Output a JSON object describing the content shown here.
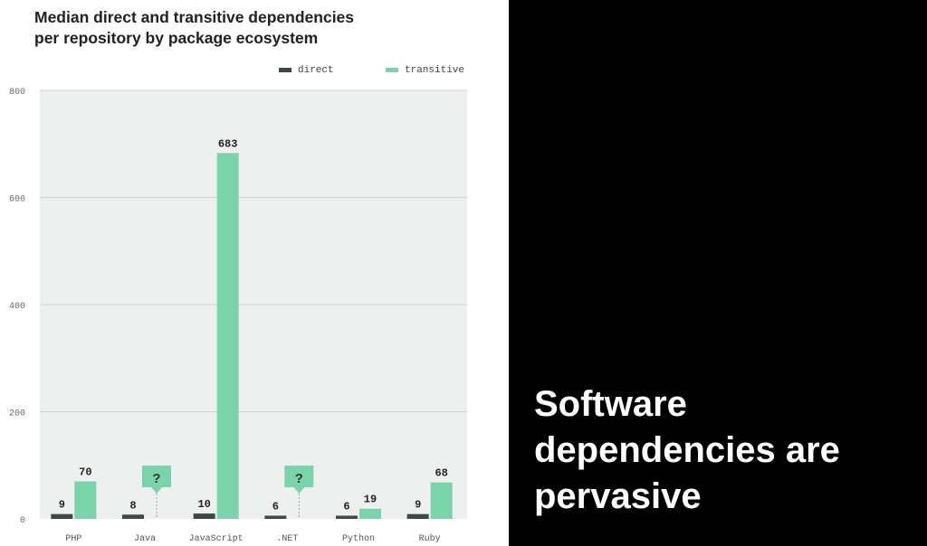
{
  "chart_data": {
    "type": "bar",
    "title_lines": [
      "Median direct and transitive dependencies",
      "per repository by package ecosystem"
    ],
    "categories": [
      "PHP",
      "Java",
      "JavaScript",
      ".NET",
      "Python",
      "Ruby"
    ],
    "series": [
      {
        "name": "direct",
        "color": "#3d4a44",
        "values": [
          9,
          8,
          10,
          6,
          6,
          9
        ]
      },
      {
        "name": "transitive",
        "color": "#7ad3aa",
        "values": [
          70,
          null,
          683,
          null,
          19,
          68
        ]
      }
    ],
    "missing_marker": "?",
    "ylim": [
      0,
      800
    ],
    "yticks": [
      0,
      200,
      400,
      600,
      800
    ],
    "grid": true,
    "legend_position": "top-right"
  },
  "slide_text": [
    "Software",
    "dependencies are",
    "pervasive"
  ],
  "colors": {
    "plot_background": "#eef0ef",
    "gridline": "#cfd4d2",
    "marker_fill": "#7ad3aa",
    "right_background": "#000000"
  }
}
